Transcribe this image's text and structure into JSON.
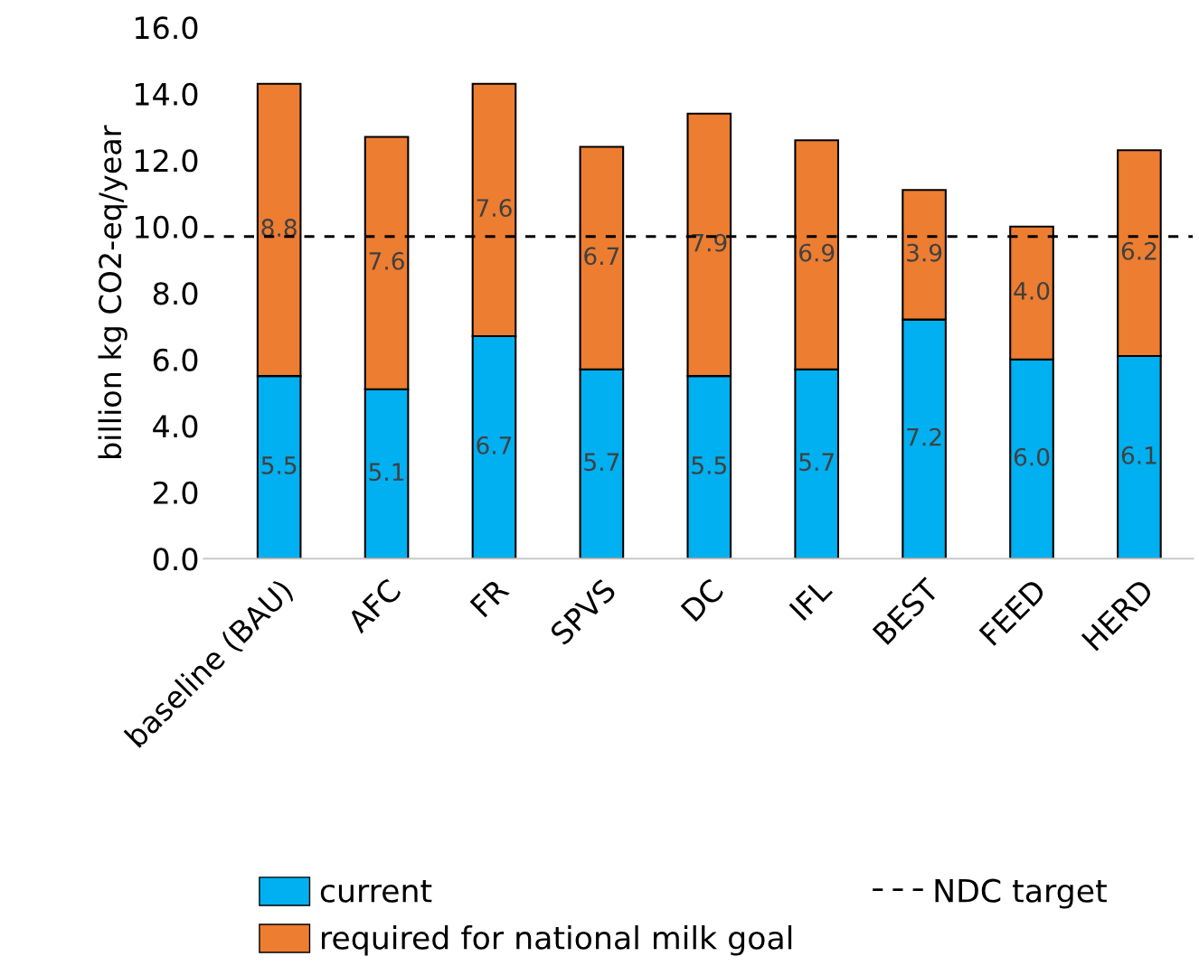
{
  "chart_data": {
    "type": "bar",
    "stacked": true,
    "ylabel": "billion kg CO2-eq/year",
    "categories": [
      "baseline (BAU)",
      "AFC",
      "FR",
      "SPVS",
      "DC",
      "IFL",
      "BEST",
      "FEED",
      "HERD"
    ],
    "series": [
      {
        "name": "current",
        "color": "#00b0f0",
        "values": [
          5.5,
          5.1,
          6.7,
          5.7,
          5.5,
          5.7,
          7.2,
          6.0,
          6.1
        ],
        "value_labels": [
          "5.5",
          "5.1",
          "6.7",
          "5.7",
          "5.5",
          "5.7",
          "7.2",
          "6.0",
          "6.1"
        ]
      },
      {
        "name": "required for national milk goal",
        "color": "#ed7d31",
        "values": [
          8.8,
          7.6,
          7.6,
          6.7,
          7.9,
          6.9,
          3.9,
          4.0,
          6.2
        ],
        "value_labels": [
          "8.8",
          "7.6",
          "7.6",
          "6.7",
          "7.9",
          "6.9",
          "3.9",
          "4.0",
          "6.2"
        ]
      }
    ],
    "ylim": [
      0,
      16
    ],
    "yticks": [
      {
        "value": 0,
        "label": "0.0"
      },
      {
        "value": 2,
        "label": "2.0"
      },
      {
        "value": 4,
        "label": "4.0"
      },
      {
        "value": 6,
        "label": "6.0"
      },
      {
        "value": 8,
        "label": "8.0"
      },
      {
        "value": 10,
        "label": "10.0"
      },
      {
        "value": 12,
        "label": "12.0"
      },
      {
        "value": 14,
        "label": "14.0"
      },
      {
        "value": 16,
        "label": "16.0"
      }
    ],
    "ref_lines": [
      {
        "axis": "y",
        "value": 9.7,
        "label": "NDC target",
        "color": "#000000",
        "line_style": "dashed"
      }
    ],
    "grid": false,
    "legend": "bottom"
  }
}
